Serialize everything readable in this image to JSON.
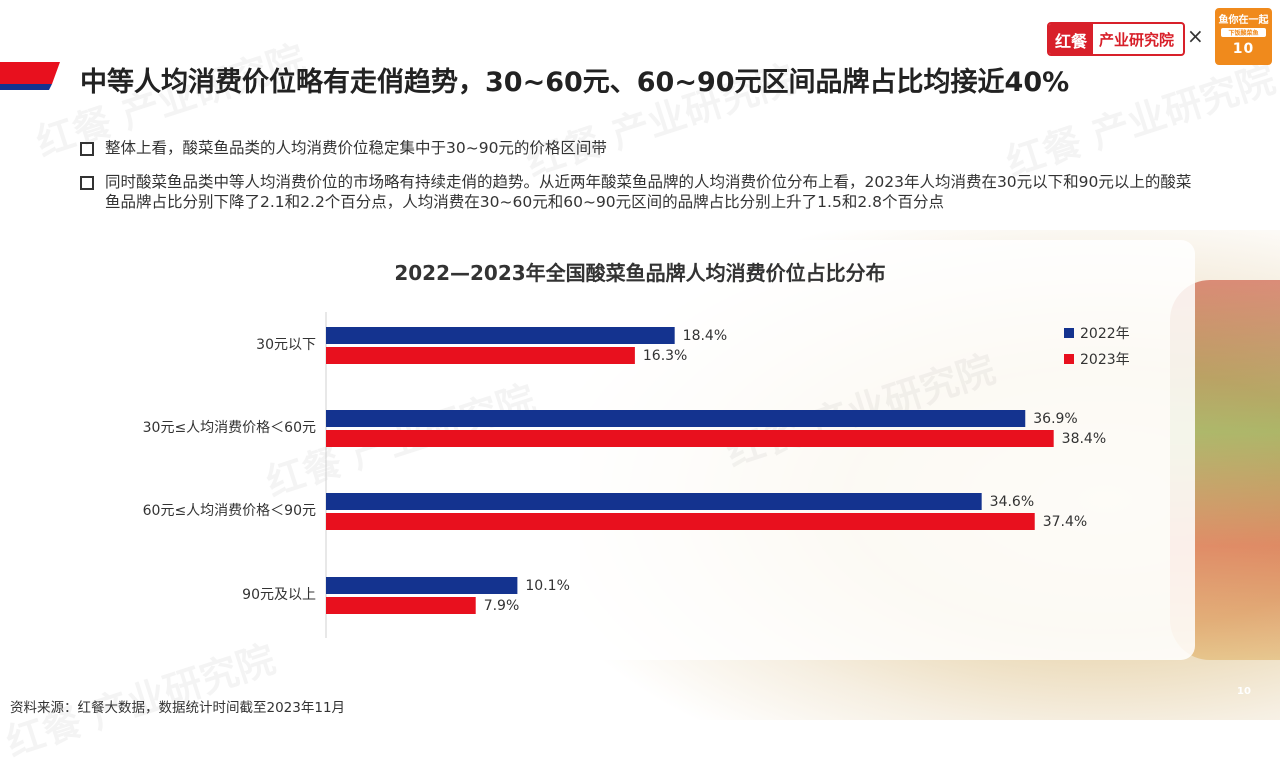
{
  "header": {
    "title": "中等人均消费价位略有走俏趋势，30~60元、60~90元区间品牌占比均接近40%",
    "logo_mark": "红餐",
    "logo_text": "产业研究院",
    "times": "×",
    "partner_line1": "鱼你在一起",
    "partner_line2": "下饭酸菜鱼",
    "partner_line3": "10"
  },
  "bullets": [
    "整体上看，酸菜鱼品类的人均消费价位稳定集中于30~90元的价格区间带",
    "同时酸菜鱼品类中等人均消费价位的市场略有持续走俏的趋势。从近两年酸菜鱼品牌的人均消费价位分布上看，2023年人均消费在30元以下和90元以上的酸菜鱼品牌占比分别下降了2.1和2.2个百分点，人均消费在30~60元和60~90元区间的品牌占比分别上升了1.5和2.8个百分点"
  ],
  "watermark": "红餐 产业研究院",
  "footer": {
    "source": "资料来源：红餐大数据，数据统计时间截至2023年11月",
    "page": "10"
  },
  "colors": {
    "series_2022": "#14338f",
    "series_2023": "#e8101e",
    "title_bar_red": "#e8101e",
    "title_bar_blue": "#14338f"
  },
  "chart_data": {
    "type": "bar",
    "orientation": "horizontal",
    "title": "2022—2023年全国酸菜鱼品牌人均消费价位占比分布",
    "categories": [
      "30元以下",
      "30元≤人均消费价格＜60元",
      "60元≤人均消费价格＜90元",
      "90元及以上"
    ],
    "series": [
      {
        "name": "2022年",
        "values": [
          18.4,
          36.9,
          34.6,
          10.1
        ],
        "labels": [
          "18.4%",
          "36.9%",
          "34.6%",
          "10.1%"
        ],
        "color": "#14338f"
      },
      {
        "name": "2023年",
        "values": [
          16.3,
          38.4,
          37.4,
          7.9
        ],
        "labels": [
          "16.3%",
          "38.4%",
          "37.4%",
          "7.9%"
        ],
        "color": "#e8101e"
      }
    ],
    "xlim": [
      0,
      50
    ],
    "legend": "top-right",
    "grid": false
  }
}
